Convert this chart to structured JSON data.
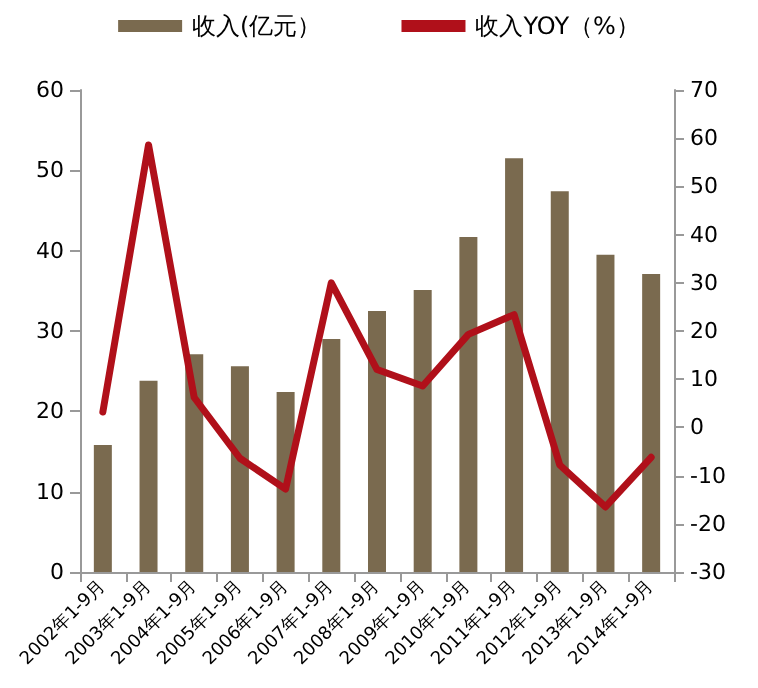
{
  "chart_data": {
    "type": "bar",
    "categories": [
      "2002年1-9月",
      "2003年1-9月",
      "2004年1-9月",
      "2005年1-9月",
      "2006年1-9月",
      "2007年1-9月",
      "2008年1-9月",
      "2009年1-9月",
      "2010年1-9月",
      "2011年1-9月",
      "2012年1-9月",
      "2013年1-9月",
      "2014年1-9月"
    ],
    "series": [
      {
        "name": "收入(亿元）",
        "color": "#7a6a4f",
        "values": [
          15.8,
          23.8,
          27.1,
          25.6,
          22.4,
          29.0,
          32.5,
          35.1,
          41.7,
          51.5,
          47.4,
          39.5,
          37.1
        ]
      },
      {
        "name": "收入YOY（%）",
        "type": "line",
        "axis": "y2",
        "color": "#b0101a",
        "values": [
          3.2,
          58.6,
          6.2,
          -6.4,
          -12.8,
          30,
          12,
          8.6,
          19.3,
          23.4,
          -7.8,
          -16.5,
          -6.2
        ]
      }
    ],
    "ylim": [
      0,
      60
    ],
    "yticks": [
      0,
      10,
      20,
      30,
      40,
      50,
      60
    ],
    "y2lim": [
      -30,
      70
    ],
    "y2ticks": [
      -30,
      -20,
      -10,
      0,
      10,
      20,
      30,
      40,
      50,
      60,
      70
    ],
    "legend": "top",
    "grid": false,
    "marker": "none",
    "line_style": "solid"
  }
}
